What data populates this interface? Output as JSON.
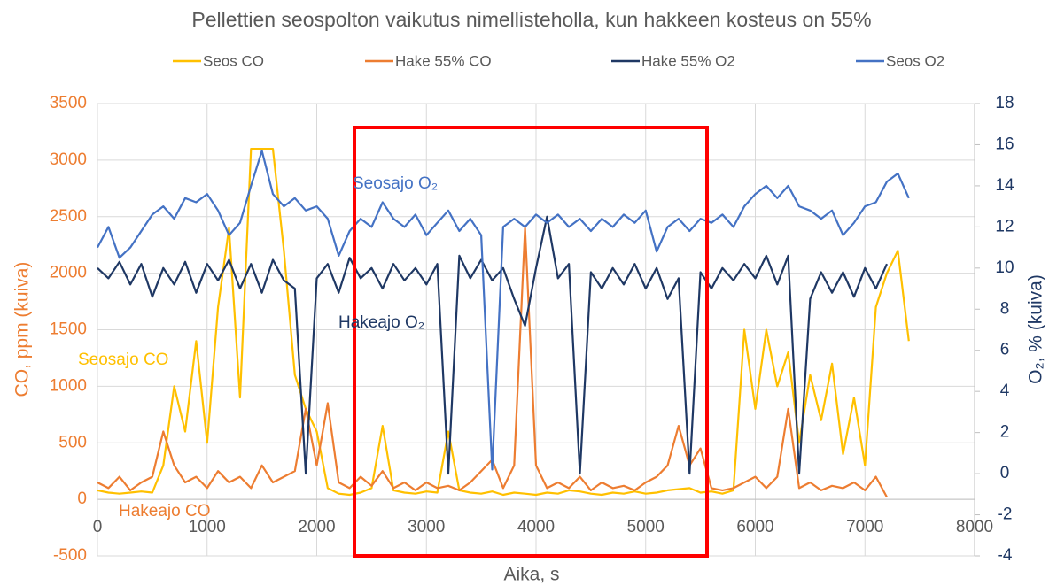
{
  "chart_data": {
    "type": "line",
    "title": "Pellettien seospolton vaikutus nimellisteholla, kun hakkeen kosteus on 55%",
    "x_label": "Aika, s",
    "y_label": "CO, ppm (kuiva)",
    "y2_label": "O₂, % (kuiva)",
    "y_label_color": "#ed7d31",
    "y2_label_color": "#1f3864",
    "xlim": [
      0,
      8000
    ],
    "xticks": [
      0,
      1000,
      2000,
      3000,
      4000,
      5000,
      6000,
      7000,
      8000
    ],
    "ylim": [
      -500,
      3500
    ],
    "yticks": [
      -500,
      0,
      500,
      1000,
      1500,
      2000,
      2500,
      3000,
      3500
    ],
    "y2lim": [
      -4,
      18
    ],
    "y2ticks": [
      -4,
      -2,
      0,
      2,
      4,
      6,
      8,
      10,
      12,
      14,
      16,
      18
    ],
    "grid": true,
    "legend": "top",
    "x": [
      0,
      100,
      200,
      300,
      400,
      500,
      600,
      700,
      800,
      900,
      1000,
      1100,
      1200,
      1300,
      1400,
      1500,
      1600,
      1700,
      1800,
      1900,
      2000,
      2100,
      2200,
      2300,
      2400,
      2500,
      2600,
      2700,
      2800,
      2900,
      3000,
      3100,
      3200,
      3300,
      3400,
      3500,
      3600,
      3700,
      3800,
      3900,
      4000,
      4100,
      4200,
      4300,
      4400,
      4500,
      4600,
      4700,
      4800,
      4900,
      5000,
      5100,
      5200,
      5300,
      5400,
      5500,
      5600,
      5700,
      5800,
      5900,
      6000,
      6100,
      6200,
      6300,
      6400,
      6500,
      6600,
      6700,
      6800,
      6900,
      7000,
      7100,
      7200,
      7300,
      7400
    ],
    "series": [
      {
        "name": "Seos CO",
        "color": "#ffc000",
        "values": [
          80,
          60,
          50,
          60,
          70,
          60,
          300,
          1000,
          600,
          1400,
          500,
          1700,
          2400,
          900,
          3100,
          3100,
          3100,
          2200,
          1100,
          800,
          600,
          100,
          50,
          40,
          60,
          100,
          650,
          80,
          60,
          50,
          70,
          60,
          600,
          80,
          60,
          50,
          70,
          40,
          60,
          50,
          40,
          60,
          50,
          80,
          70,
          50,
          40,
          60,
          50,
          70,
          50,
          60,
          80,
          90,
          100,
          60,
          70,
          50,
          80,
          1500,
          800,
          1500,
          1000,
          1300,
          500,
          1100,
          700,
          1200,
          400,
          900,
          300,
          1700,
          2000,
          2200,
          1400
        ]
      },
      {
        "name": "Hake 55% CO",
        "color": "#ed7d31",
        "values": [
          150,
          100,
          200,
          80,
          150,
          200,
          600,
          300,
          150,
          200,
          100,
          250,
          150,
          200,
          100,
          300,
          150,
          200,
          250,
          800,
          300,
          850,
          150,
          100,
          200,
          120,
          250,
          100,
          150,
          80,
          150,
          100,
          120,
          80,
          150,
          250,
          350,
          100,
          300,
          2400,
          300,
          100,
          150,
          100,
          200,
          80,
          150,
          100,
          120,
          80,
          150,
          200,
          300,
          650,
          300,
          450,
          100,
          80,
          100,
          150,
          200,
          100,
          200,
          800,
          100,
          150,
          80,
          120,
          100,
          150,
          80,
          200,
          20,
          null,
          null
        ]
      },
      {
        "name": "Hake 55% O2",
        "color": "#1f3864",
        "axis": "y2",
        "values": [
          10,
          9.5,
          10.3,
          9.2,
          10.2,
          8.6,
          10,
          9.2,
          10.3,
          8.8,
          10.2,
          9.4,
          10.4,
          9,
          10.2,
          8.8,
          10.4,
          9.4,
          9,
          0,
          9.5,
          10.2,
          8.8,
          10.5,
          9.5,
          10,
          9,
          10.2,
          9.4,
          10,
          9.2,
          10.2,
          0,
          10.6,
          9.5,
          10.4,
          9.4,
          10,
          8.5,
          7.2,
          10,
          12.5,
          9.5,
          10.2,
          0,
          9.8,
          9,
          10,
          9.2,
          10.2,
          9,
          10,
          8.5,
          9.5,
          0,
          9.8,
          9,
          10,
          9.4,
          10.2,
          9.5,
          10.6,
          9.2,
          10.6,
          0,
          8.5,
          9.8,
          8.8,
          9.8,
          8.6,
          10,
          9,
          10.2,
          null,
          null
        ]
      },
      {
        "name": "Seos O2",
        "color": "#4472c4",
        "axis": "y2",
        "values": [
          11,
          12,
          10.5,
          11,
          11.8,
          12.6,
          13,
          12.4,
          13.4,
          13.2,
          13.6,
          12.8,
          11.6,
          12.2,
          14,
          15.7,
          13.6,
          13,
          13.4,
          12.8,
          13,
          12.4,
          10.6,
          11.8,
          12.4,
          12,
          13.2,
          12.4,
          12,
          12.6,
          11.6,
          12.2,
          12.8,
          11.8,
          12.4,
          11.6,
          0.2,
          12,
          12.4,
          12,
          12.6,
          12.2,
          12.6,
          12,
          12.4,
          11.8,
          12.4,
          12,
          12.6,
          12.2,
          12.8,
          10.8,
          12,
          12.4,
          11.8,
          12.4,
          12.2,
          12.6,
          12,
          13,
          13.6,
          14,
          13.4,
          14,
          13,
          12.8,
          12.4,
          12.8,
          11.6,
          12.2,
          13,
          13.2,
          14.2,
          14.6,
          13.4
        ]
      }
    ],
    "annotations": [
      {
        "text": "Seosajo O₂",
        "color": "#4472c4"
      },
      {
        "text": "Hakeajo O₂",
        "color": "#1f3864"
      },
      {
        "text": "Seosajo CO",
        "color": "#ffc000"
      },
      {
        "text": "Hakeajo CO",
        "color": "#ed7d31"
      }
    ]
  }
}
